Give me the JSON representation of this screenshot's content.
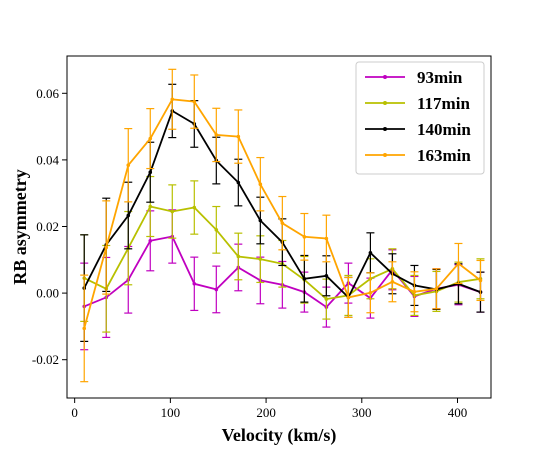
{
  "chart_data": {
    "type": "line",
    "title": "",
    "xlabel": "Velocity (km/s)",
    "ylabel": "RB asymmetry",
    "xlim": [
      -8,
      435
    ],
    "ylim": [
      -0.0315,
      0.0712
    ],
    "xticks": [
      0,
      100,
      200,
      300,
      400
    ],
    "xtick_labels": [
      "0",
      "100",
      "200",
      "300",
      "400"
    ],
    "yticks": [
      -0.02,
      0.0,
      0.02,
      0.04,
      0.06
    ],
    "ytick_labels": [
      "-0.02",
      "0.00",
      "0.02",
      "0.04",
      "0.06"
    ],
    "grid": false,
    "legend_position": "top-right",
    "x": [
      10,
      33,
      56,
      79,
      102,
      125,
      148,
      171,
      194,
      217,
      240,
      263,
      286,
      309,
      332,
      355,
      378,
      401,
      424
    ],
    "series": [
      {
        "name": "93min",
        "color": "#c000c0",
        "values": [
          -0.004,
          -0.0013,
          0.004,
          0.0157,
          0.017,
          0.0028,
          0.0011,
          0.0077,
          0.0038,
          0.0025,
          0.0003,
          -0.0042,
          0.003,
          -0.0015,
          0.007,
          -0.001,
          0.0013,
          0.0025,
          0.0003
        ],
        "errors": [
          0.013,
          0.012,
          0.01,
          0.009,
          0.008,
          0.008,
          0.007,
          0.007,
          0.007,
          0.007,
          0.006,
          0.006,
          0.006,
          0.006,
          0.006,
          0.006,
          0.006,
          0.006,
          0.006
        ]
      },
      {
        "name": "117min",
        "color": "#b8c000",
        "values": [
          0.0045,
          0.0013,
          0.0135,
          0.026,
          0.0245,
          0.0257,
          0.019,
          0.011,
          0.0102,
          0.0088,
          0.004,
          -0.0018,
          -0.0007,
          0.0043,
          0.0073,
          -0.0007,
          0.0005,
          0.0033,
          0.0043
        ],
        "errors": [
          0.013,
          0.013,
          0.011,
          0.009,
          0.008,
          0.008,
          0.007,
          0.007,
          0.007,
          0.007,
          0.007,
          0.006,
          0.006,
          0.006,
          0.006,
          0.006,
          0.006,
          0.006,
          0.006
        ]
      },
      {
        "name": "140min",
        "color": "#000000",
        "values": [
          0.0015,
          0.0145,
          0.0233,
          0.0363,
          0.0547,
          0.0508,
          0.0398,
          0.0332,
          0.0218,
          0.0153,
          0.0043,
          0.0052,
          -0.0013,
          0.0121,
          0.0058,
          0.0023,
          0.0011,
          0.0028,
          0.0003
        ],
        "errors": [
          0.016,
          0.014,
          0.01,
          0.009,
          0.008,
          0.007,
          0.007,
          0.007,
          0.007,
          0.007,
          0.007,
          0.006,
          0.006,
          0.006,
          0.006,
          0.006,
          0.006,
          0.006,
          0.006
        ]
      },
      {
        "name": "163min",
        "color": "#ffa500",
        "values": [
          -0.0106,
          0.0137,
          0.0384,
          0.0464,
          0.0582,
          0.0575,
          0.0475,
          0.047,
          0.0327,
          0.021,
          0.0169,
          0.0164,
          -0.0013,
          0.0001,
          0.0034,
          0.0004,
          0.0013,
          0.0089,
          0.0038
        ],
        "errors": [
          0.016,
          0.014,
          0.011,
          0.009,
          0.009,
          0.008,
          0.008,
          0.008,
          0.008,
          0.008,
          0.007,
          0.007,
          0.006,
          0.006,
          0.006,
          0.006,
          0.006,
          0.006,
          0.006
        ]
      }
    ]
  }
}
